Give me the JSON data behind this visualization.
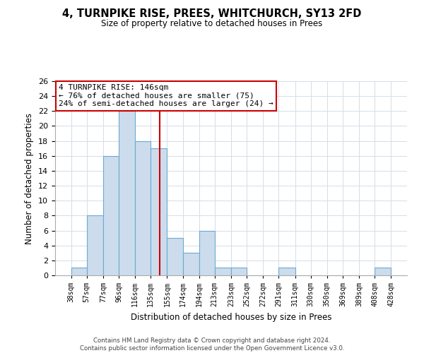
{
  "title": "4, TURNPIKE RISE, PREES, WHITCHURCH, SY13 2FD",
  "subtitle": "Size of property relative to detached houses in Prees",
  "xlabel": "Distribution of detached houses by size in Prees",
  "ylabel": "Number of detached properties",
  "bar_color": "#ccdcec",
  "bar_edge_color": "#6aaad4",
  "bins": [
    38,
    57,
    77,
    96,
    116,
    135,
    155,
    174,
    194,
    213,
    233,
    252,
    272,
    291,
    311,
    330,
    350,
    369,
    389,
    408,
    428
  ],
  "counts": [
    1,
    8,
    16,
    22,
    18,
    17,
    5,
    3,
    6,
    1,
    1,
    0,
    0,
    1,
    0,
    0,
    0,
    0,
    0,
    1
  ],
  "tick_labels": [
    "38sqm",
    "57sqm",
    "77sqm",
    "96sqm",
    "116sqm",
    "135sqm",
    "155sqm",
    "174sqm",
    "194sqm",
    "213sqm",
    "233sqm",
    "252sqm",
    "272sqm",
    "291sqm",
    "311sqm",
    "330sqm",
    "350sqm",
    "369sqm",
    "389sqm",
    "408sqm",
    "428sqm"
  ],
  "vline_x": 146,
  "vline_color": "#cc0000",
  "ylim": [
    0,
    26
  ],
  "yticks": [
    0,
    2,
    4,
    6,
    8,
    10,
    12,
    14,
    16,
    18,
    20,
    22,
    24,
    26
  ],
  "annotation_title": "4 TURNPIKE RISE: 146sqm",
  "annotation_line1": "← 76% of detached houses are smaller (75)",
  "annotation_line2": "24% of semi-detached houses are larger (24) →",
  "annotation_box_color": "#ffffff",
  "annotation_box_edge": "#cc0000",
  "footer_line1": "Contains HM Land Registry data © Crown copyright and database right 2024.",
  "footer_line2": "Contains public sector information licensed under the Open Government Licence v3.0.",
  "background_color": "#ffffff",
  "grid_color": "#d4dde8"
}
